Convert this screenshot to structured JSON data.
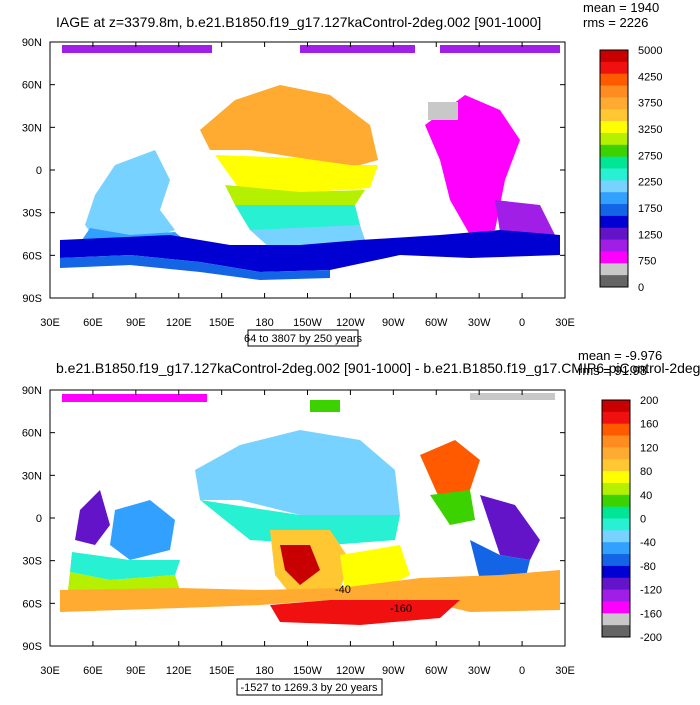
{
  "chart_data": [
    {
      "type": "map",
      "title": "IAGE at z=3379.8m, b.e21.B1850.f19_g17.127kaControl-2deg.002 [901-1000]",
      "stats": {
        "mean": "mean = 1940",
        "rms": "rms = 2226"
      },
      "x_ticks": [
        "30E",
        "60E",
        "90E",
        "120E",
        "150E",
        "180",
        "150W",
        "120W",
        "90W",
        "60W",
        "30W",
        "0",
        "30E"
      ],
      "y_ticks": [
        "90N",
        "60N",
        "30N",
        "0",
        "30S",
        "60S",
        "90S"
      ],
      "range_note": "64 to 3807 by 250 years",
      "colorbar": {
        "labels": [
          "5000",
          "4250",
          "3750",
          "3250",
          "2750",
          "2250",
          "1750",
          "1250",
          "750",
          "0"
        ],
        "colors": [
          "#c80000",
          "#f01010",
          "#ff5a00",
          "#ff8c20",
          "#ffaa30",
          "#ffc832",
          "#ffff00",
          "#b4f000",
          "#3cd200",
          "#00e696",
          "#28f0d2",
          "#78d2ff",
          "#32a0ff",
          "#1464e6",
          "#0000d2",
          "#6414c8",
          "#a01ee6",
          "#ff00ff",
          "#c8c8c8",
          "#646464"
        ]
      }
    },
    {
      "type": "map",
      "title": "b.e21.B1850.f19_g17.127kaControl-2deg.002 [901-1000] - b.e21.B1850.f19_g17.CMIP6-piControl-2deg",
      "stats": {
        "mean": "mean = -9.976",
        "rms": "rms = 91.98"
      },
      "x_ticks": [
        "30E",
        "60E",
        "90E",
        "120E",
        "150E",
        "180",
        "150W",
        "120W",
        "90W",
        "60W",
        "30W",
        "0",
        "30E"
      ],
      "y_ticks": [
        "90N",
        "60N",
        "30N",
        "0",
        "30S",
        "60S",
        "90S"
      ],
      "range_note": "-1527 to 1269.3 by 20 years",
      "contour_labels": [
        "-40",
        "-160"
      ],
      "colorbar": {
        "labels": [
          "200",
          "160",
          "120",
          "80",
          "40",
          "0",
          "-40",
          "-80",
          "-120",
          "-160",
          "-200"
        ],
        "colors": [
          "#c80000",
          "#f01010",
          "#ff5a00",
          "#ff8c20",
          "#ffaa30",
          "#ffc832",
          "#ffff00",
          "#b4f000",
          "#3cd200",
          "#00e696",
          "#28f0d2",
          "#78d2ff",
          "#32a0ff",
          "#1464e6",
          "#0000d2",
          "#6414c8",
          "#a01ee6",
          "#ff00ff",
          "#c8c8c8",
          "#646464"
        ]
      }
    }
  ]
}
